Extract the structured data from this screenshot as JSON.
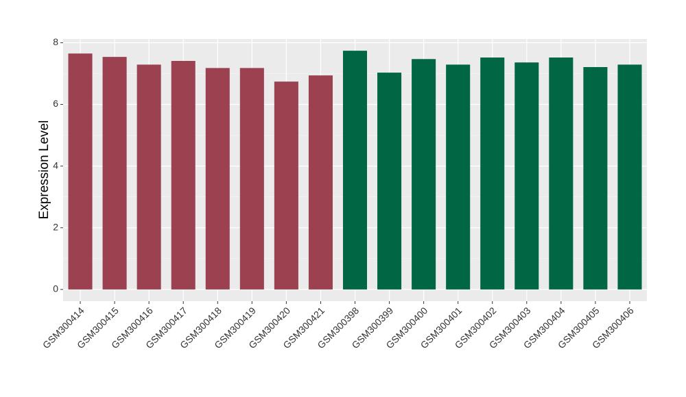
{
  "chart_data": {
    "type": "bar",
    "y_label": "Expression Level",
    "categories": [
      "GSM300414",
      "GSM300415",
      "GSM300416",
      "GSM300417",
      "GSM300418",
      "GSM300419",
      "GSM300420",
      "GSM300421",
      "GSM300398",
      "GSM300399",
      "GSM300400",
      "GSM300401",
      "GSM300402",
      "GSM300403",
      "GSM300404",
      "GSM300405",
      "GSM300406"
    ],
    "values": [
      7.65,
      7.54,
      7.29,
      7.41,
      7.18,
      7.18,
      6.74,
      6.94,
      7.74,
      7.03,
      7.47,
      7.29,
      7.52,
      7.36,
      7.52,
      7.21,
      7.29
    ],
    "colors": [
      "#9b4150",
      "#9b4150",
      "#9b4150",
      "#9b4150",
      "#9b4150",
      "#9b4150",
      "#9b4150",
      "#9b4150",
      "#006644",
      "#006644",
      "#006644",
      "#006644",
      "#006644",
      "#006644",
      "#006644",
      "#006644",
      "#006644"
    ],
    "ylim": [
      -0.38,
      8.12
    ],
    "yticks": [
      0,
      2,
      4,
      6,
      8
    ],
    "minor_yticks": [
      1,
      3,
      5,
      7
    ],
    "grid": true
  }
}
